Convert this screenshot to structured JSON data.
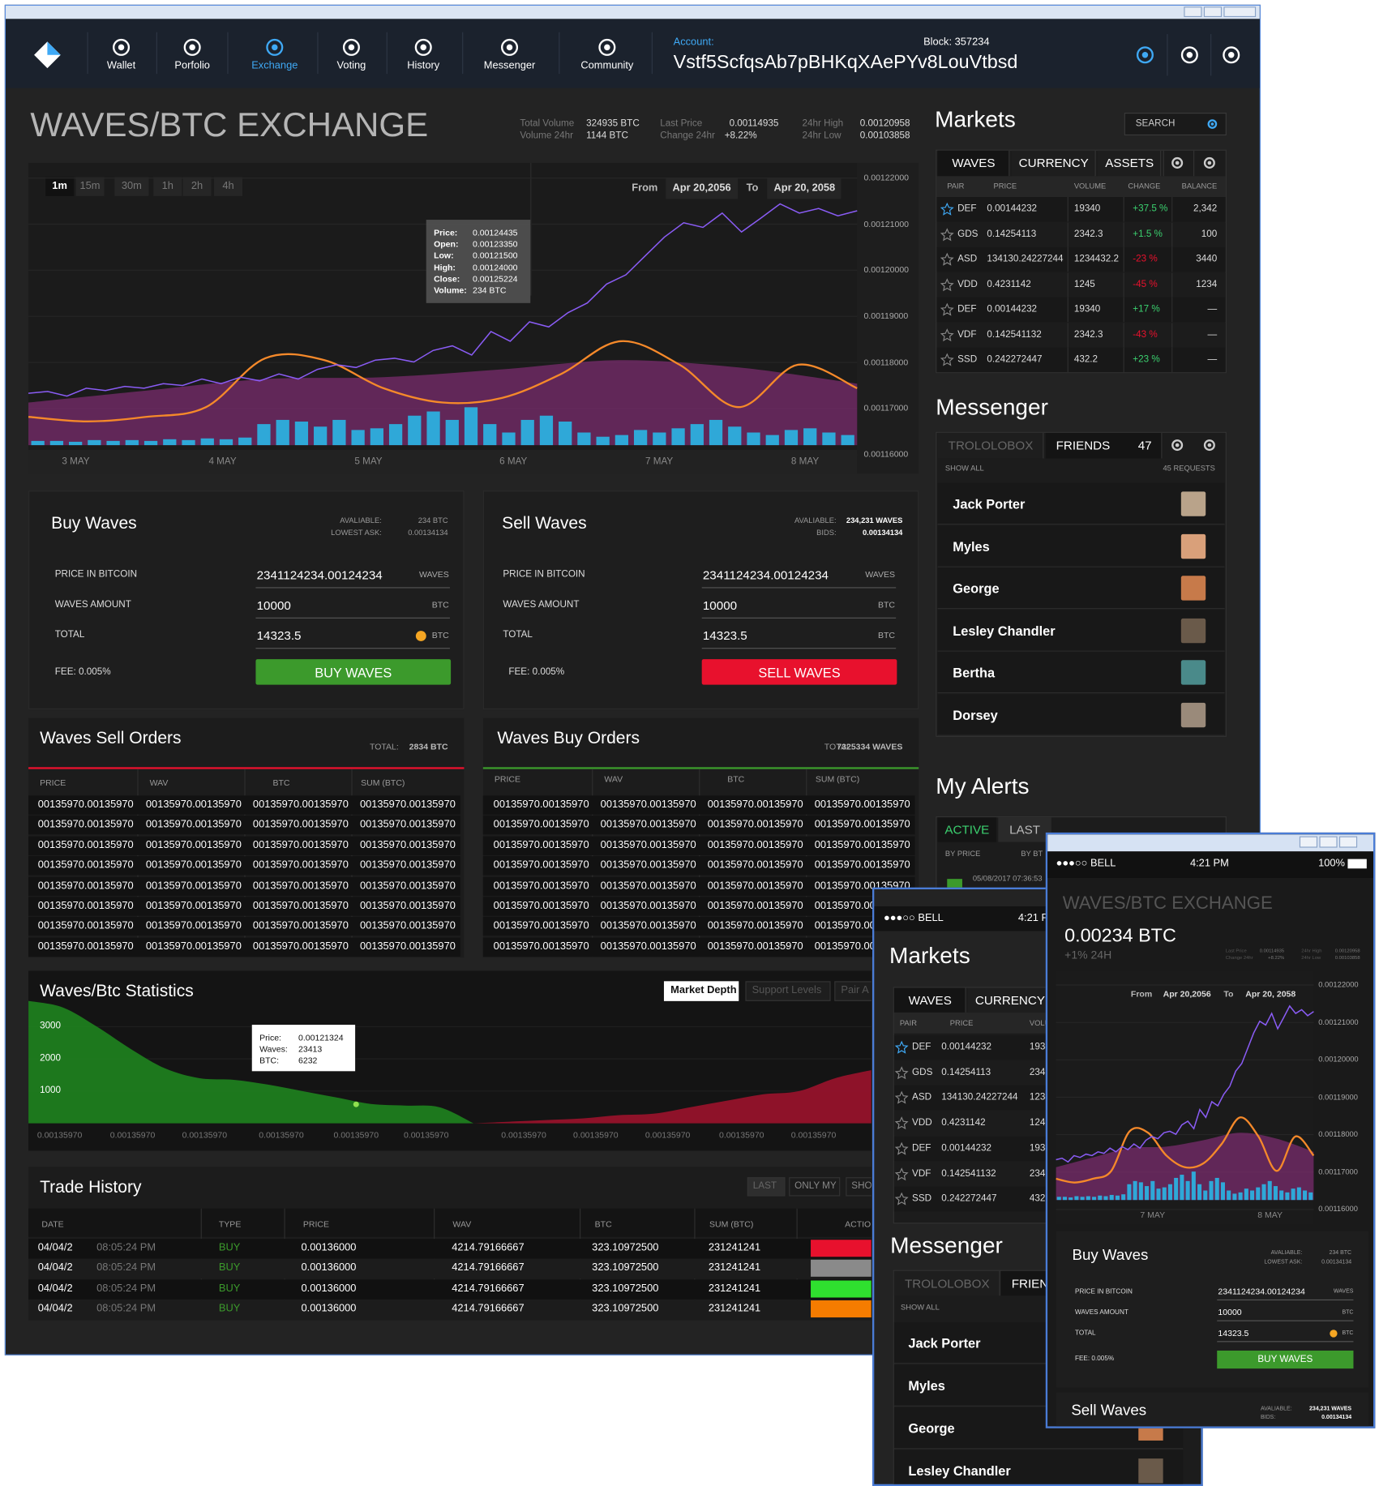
{
  "nav": {
    "items": [
      "Wallet",
      "Porfolio",
      "Exchange",
      "Voting",
      "History",
      "Messenger",
      "Community"
    ],
    "active": 2,
    "account_label": "Account:",
    "account": "Vstf5ScfqsAb7pBHKqXAePYv8LouVtbsd",
    "block": "Block: 357234"
  },
  "header": {
    "title": "WAVES/BTC EXCHANGE",
    "stats": [
      [
        "Total Volume",
        "324935 BTC"
      ],
      [
        "Volume 24hr",
        "1144 BTC"
      ],
      [
        "Last Price",
        "0.00114935"
      ],
      [
        "Change 24hr",
        "+8.22%"
      ],
      [
        "24hr High",
        "0.00120958"
      ],
      [
        "24hr Low",
        "0.00103858"
      ]
    ]
  },
  "price_chart": {
    "intervals": [
      "1m",
      "15m",
      "30m",
      "1h",
      "2h",
      "4h"
    ],
    "active_interval": 0,
    "from_label": "From",
    "from": "Apr 20,2056",
    "to_label": "To",
    "to": "Apr 20, 2058",
    "tooltip": [
      [
        "Price:",
        "0.00124435"
      ],
      [
        "Open:",
        "0.00123350"
      ],
      [
        "Low:",
        "0.00121500"
      ],
      [
        "High:",
        "0.00124000"
      ],
      [
        "Close:",
        "0.00125224"
      ],
      [
        "Volume:",
        "234 BTC"
      ]
    ],
    "x_labels": [
      "3 MAY",
      "4 MAY",
      "5 MAY",
      "6 MAY",
      "7 MAY",
      "8 MAY"
    ],
    "ylim": [
      0.00116,
      0.00122
    ],
    "yticks": [
      {
        "value": 0.00122,
        "label": "0.00122000"
      },
      {
        "value": 0.00121,
        "label": "0.00121000"
      },
      {
        "value": 0.0012,
        "label": "0.00120000"
      },
      {
        "value": 0.00119,
        "label": "0.00119000"
      },
      {
        "value": 0.00118,
        "label": "0.00118000"
      },
      {
        "value": 0.00117,
        "label": "0.00117000"
      },
      {
        "value": 0.00116,
        "label": "0.00116000"
      }
    ],
    "price": [
      0.0011733,
      0.0011737,
      0.0011727,
      0.0011744,
      0.0011739,
      0.0011748,
      0.0011744,
      0.0011754,
      0.001175,
      0.0011764,
      0.0011754,
      0.0011768,
      0.001176,
      0.0011775,
      0.0011764,
      0.0011785,
      0.0011795,
      0.0011789,
      0.0011805,
      0.0011809,
      0.0011801,
      0.0011826,
      0.0011836,
      0.0011816,
      0.0011867,
      0.0011846,
      0.0011888,
      0.0011877,
      0.0011908,
      0.0011929,
      0.001197,
      0.001199,
      0.0012031,
      0.0012072,
      0.0012103,
      0.0012093,
      0.0012124,
      0.0012083,
      0.0012113,
      0.0012144,
      0.0012124,
      0.0012134,
      0.0012118,
      0.0012129
    ],
    "trend": [
      0.0011682,
      0.0011672,
      0.0011682,
      0.0011703,
      0.0011809,
      0.0011805,
      0.0011744,
      0.0011713,
      0.0011723,
      0.0011775,
      0.0011846,
      0.0011795,
      0.0011703,
      0.0011795,
      0.0011744
    ],
    "average": [
      0.0011713,
      0.0011739,
      0.0011764,
      0.0011768,
      0.0011785,
      0.0011805,
      0.0011789,
      0.0011754
    ],
    "volume": [
      5,
      5,
      4,
      6,
      5,
      6,
      5,
      7,
      6,
      8,
      7,
      9,
      25,
      30,
      28,
      22,
      30,
      18,
      20,
      25,
      35,
      40,
      30,
      45,
      25,
      15,
      30,
      35,
      28,
      15,
      10,
      12,
      18,
      15,
      20,
      25,
      30,
      22,
      15,
      12,
      18,
      20,
      15,
      12
    ],
    "price_color": "#8a5cf5",
    "trend_color": "#f5892a",
    "average_color": "#7a2c6e",
    "volume_color": "#2fa8d8"
  },
  "markets": {
    "title": "Markets",
    "search": "SEARCH",
    "tabs": [
      "WAVES",
      "CURRENCY",
      "ASSETS"
    ],
    "active_tab": 0,
    "columns": [
      "PAIR",
      "PRICE",
      "VOLUME",
      "CHANGE",
      "BALANCE"
    ],
    "rows": [
      [
        "DEF",
        "0.00144232",
        "19340",
        "+37.5 %",
        "2,342"
      ],
      [
        "GDS",
        "0.14254113",
        "2342.3",
        "+1.5 %",
        "100"
      ],
      [
        "ASD",
        "134130.24227244",
        "1234432.2",
        "-23 %",
        "3440"
      ],
      [
        "VDD",
        "0.4231142",
        "1245",
        "-45 %",
        "1234"
      ],
      [
        "DEF",
        "0.00144232",
        "19340",
        "+17 %",
        "—"
      ],
      [
        "VDF",
        "0.142541132",
        "2342.3",
        "-43 %",
        "—"
      ],
      [
        "SSD",
        "0.242272447",
        "432.2",
        "+23 %",
        "—"
      ]
    ]
  },
  "messenger": {
    "title": "Messenger",
    "tabs": [
      "TROLOLOBOX",
      "FRIENDS"
    ],
    "active_tab": 1,
    "count": "47",
    "show_all": "SHOW ALL",
    "requests": "45 REQUESTS",
    "friends": [
      "Jack Porter",
      "Myles",
      "George",
      "Lesley Chandler",
      "Bertha",
      "Dorsey"
    ]
  },
  "alerts": {
    "title": "My Alerts",
    "tabs": [
      "ACTIVE",
      "LAST"
    ],
    "active_tab": 0,
    "columns": [
      "BY PRICE",
      "BY BT"
    ],
    "date": "05/08/2017 07:36:53"
  },
  "buy": {
    "title": "Buy Waves",
    "info": [
      [
        "AVALIABLE:",
        "234 BTC"
      ],
      [
        "LOWEST ASK:",
        "0.00134134"
      ]
    ],
    "fields": [
      [
        "PRICE IN BITCOIN",
        "2341124234.00124234",
        "WAVES"
      ],
      [
        "WAVES AMOUNT",
        "10000",
        "BTC"
      ],
      [
        "TOTAL",
        "14323.5",
        "BTC"
      ]
    ],
    "fee": "FEE: 0.005%",
    "button": "BUY WAVES",
    "color": "#3c9a2c"
  },
  "sell": {
    "title": "Sell Waves",
    "info": [
      [
        "AVALIABLE:",
        "234,231 WAVES"
      ],
      [
        "BIDS:",
        "0.00134134"
      ]
    ],
    "fields": [
      [
        "PRICE IN BITCOIN",
        "2341124234.00124234",
        "WAVES"
      ],
      [
        "WAVES AMOUNT",
        "10000",
        "BTC"
      ],
      [
        "TOTAL",
        "14323.5",
        "BTC"
      ]
    ],
    "fee": "FEE: 0.005%",
    "button": "SELL WAVES",
    "color": "#e8112d"
  },
  "sell_orders": {
    "title": "Waves Sell Orders",
    "total_label": "TOTAL:",
    "total": "2834 BTC",
    "columns": [
      "PRICE",
      "WAV",
      "BTC",
      "SUM (BTC)"
    ],
    "rows": [
      [
        "00135970.00135970",
        "00135970.00135970",
        "00135970.00135970",
        "00135970.00135970"
      ],
      [
        "00135970.00135970",
        "00135970.00135970",
        "00135970.00135970",
        "00135970.00135970"
      ],
      [
        "00135970.00135970",
        "00135970.00135970",
        "00135970.00135970",
        "00135970.00135970"
      ],
      [
        "00135970.00135970",
        "00135970.00135970",
        "00135970.00135970",
        "00135970.00135970"
      ],
      [
        "00135970.00135970",
        "00135970.00135970",
        "00135970.00135970",
        "00135970.00135970"
      ],
      [
        "00135970.00135970",
        "00135970.00135970",
        "00135970.00135970",
        "00135970.00135970"
      ],
      [
        "00135970.00135970",
        "00135970.00135970",
        "00135970.00135970",
        "00135970.00135970"
      ],
      [
        "00135970.00135970",
        "00135970.00135970",
        "00135970.00135970",
        "00135970.00135970"
      ]
    ],
    "line_color": "#e8112d"
  },
  "buy_orders": {
    "title": "Waves Buy Orders",
    "total_label": "TOTAL:",
    "total": "7325334 WAVES",
    "columns": [
      "PRICE",
      "WAV",
      "BTC",
      "SUM (BTC)"
    ],
    "rows": [
      [
        "00135970.00135970",
        "00135970.00135970",
        "00135970.00135970",
        "00135970.00135970"
      ],
      [
        "00135970.00135970",
        "00135970.00135970",
        "00135970.00135970",
        "00135970.00135970"
      ],
      [
        "00135970.00135970",
        "00135970.00135970",
        "00135970.00135970",
        "00135970.00135970"
      ],
      [
        "00135970.00135970",
        "00135970.00135970",
        "00135970.00135970",
        "00135970.00135970"
      ],
      [
        "00135970.00135970",
        "00135970.00135970",
        "00135970.00135970",
        "00135970.00135970"
      ],
      [
        "00135970.00135970",
        "00135970.00135970",
        "00135970.00135970",
        "00135970.00135970"
      ],
      [
        "00135970.00135970",
        "00135970.00135970",
        "00135970.00135970",
        "00135970.00135970"
      ],
      [
        "00135970.00135970",
        "00135970.00135970",
        "00135970.00135970",
        "00135970.00135970"
      ]
    ],
    "line_color": "#3c9a2c"
  },
  "statistics": {
    "title": "Waves/Btc Statistics",
    "tabs": [
      "Market Depth",
      "Support Levels",
      "Pair A"
    ],
    "active_tab": 0,
    "ylim": [
      0,
      3900
    ],
    "yticks": [
      3000,
      2000,
      1000
    ],
    "x_labels": [
      "0.00135970",
      "0.00135970",
      "0.00135970",
      "0.00135970",
      "0.00135970",
      "0.00135970",
      "0.00135970",
      "0.00135970",
      "0.00135970",
      "0.00135970",
      "0.00135970"
    ],
    "bids": [
      3800,
      3600,
      3000,
      2300,
      1700,
      1400,
      1350,
      1200,
      1000,
      800,
      600,
      550,
      500,
      0
    ],
    "asks": [
      0,
      50,
      100,
      150,
      250,
      300,
      500,
      700,
      900,
      1000,
      1400,
      1650
    ],
    "bid_color": "#1f8a1f",
    "ask_color": "#a3122d",
    "tooltip": [
      [
        "Price:",
        "0.00121324"
      ],
      [
        "Waves:",
        "23413"
      ],
      [
        "BTC:",
        "6232"
      ]
    ]
  },
  "trade_history": {
    "title": "Trade History",
    "filters": [
      "LAST",
      "ONLY MY",
      "SHO"
    ],
    "columns": [
      "DATE",
      "TYPE",
      "PRICE",
      "WAV",
      "BTC",
      "SUM (BTC)",
      "ACTION"
    ],
    "rows": [
      [
        "04/04/2",
        "08:05:24 PM",
        "BUY",
        "0.00136000",
        "4214.79166667",
        "323.10972500",
        "231241241"
      ],
      [
        "04/04/2",
        "08:05:24 PM",
        "BUY",
        "0.00136000",
        "4214.79166667",
        "323.10972500",
        "231241241"
      ],
      [
        "04/04/2",
        "08:05:24 PM",
        "BUY",
        "0.00136000",
        "4214.79166667",
        "323.10972500",
        "231241241"
      ],
      [
        "04/04/2",
        "08:05:24 PM",
        "BUY",
        "0.00136000",
        "4214.79166667",
        "323.10972500",
        "231241241"
      ]
    ],
    "action_colors": [
      "#e8112d",
      "#8a8a8a",
      "#2fe02f",
      "#f57c00"
    ]
  },
  "phone": {
    "carrier": "●●●○○ BELL",
    "time": "4:21 PM",
    "battery": "100%",
    "price": "0.00234 BTC",
    "change": "+1% 24H",
    "x_labels": [
      "7 MAY",
      "8 MAY"
    ]
  }
}
